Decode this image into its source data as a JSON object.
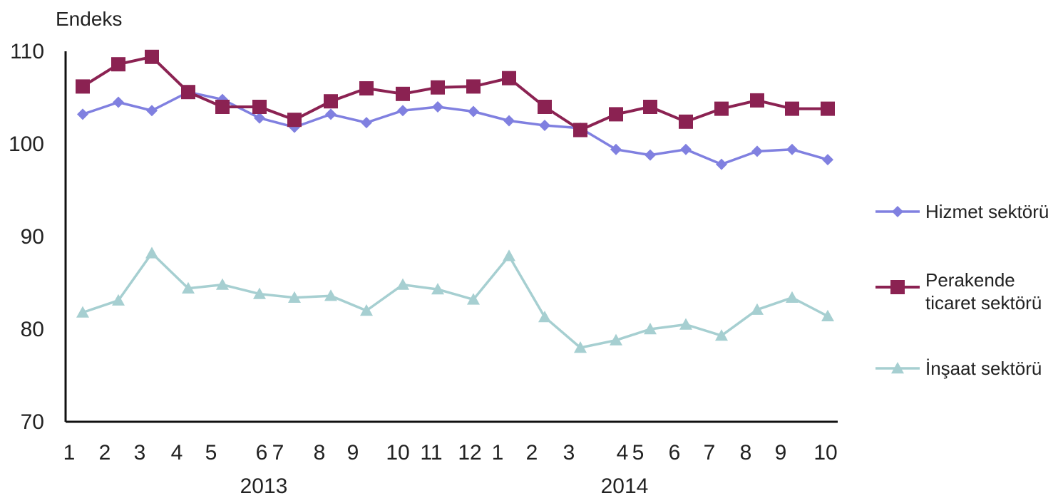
{
  "chart_data": {
    "type": "line",
    "ylabel": "Endeks",
    "ylim": [
      70,
      110
    ],
    "yticks": [
      70,
      80,
      90,
      100,
      110
    ],
    "xlabels": [
      "1",
      "2",
      "3",
      "4",
      "5",
      "6",
      "7",
      "8",
      "9",
      "10",
      "11",
      "12",
      "1",
      "2",
      "3",
      "4",
      "5",
      "6",
      "7",
      "8",
      "9",
      "10"
    ],
    "years": [
      "2013",
      "2014"
    ],
    "grid": false,
    "legend_position": "right",
    "series": [
      {
        "name": "Hizmet sektörü",
        "color": "#8080e0",
        "marker": "diamond",
        "values": [
          103.2,
          104.5,
          103.6,
          105.6,
          104.8,
          102.8,
          101.8,
          103.2,
          102.3,
          103.6,
          104.0,
          103.5,
          102.5,
          102.0,
          101.7,
          99.4,
          98.8,
          99.4,
          97.8,
          99.2,
          99.4,
          98.3
        ]
      },
      {
        "name": "Perakende ticaret sektörü",
        "color": "#8b2252",
        "marker": "square",
        "values": [
          106.2,
          108.6,
          109.4,
          105.6,
          104.0,
          104.0,
          102.6,
          104.6,
          106.0,
          105.4,
          106.1,
          106.2,
          107.1,
          104.0,
          101.5,
          103.2,
          104.0,
          102.4,
          103.8,
          104.7,
          103.8,
          103.8
        ]
      },
      {
        "name": "İnşaat sektörü",
        "color": "#a6cfd1",
        "marker": "triangle",
        "values": [
          81.8,
          83.1,
          88.2,
          84.4,
          84.8,
          83.8,
          83.4,
          83.6,
          82.0,
          84.8,
          84.3,
          83.2,
          87.9,
          81.3,
          78.0,
          78.8,
          80.0,
          80.5,
          79.3,
          82.1,
          83.4,
          81.4
        ]
      }
    ]
  }
}
